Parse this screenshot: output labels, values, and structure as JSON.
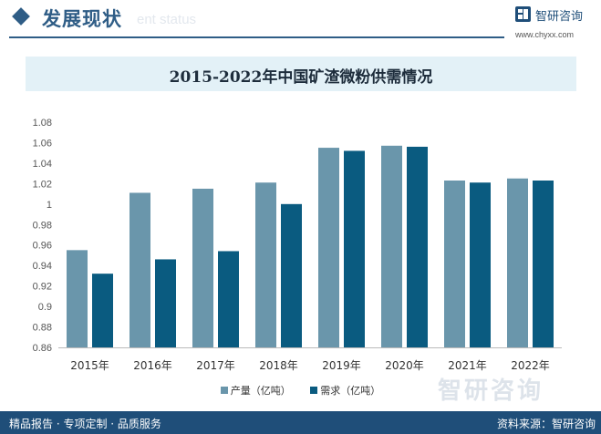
{
  "header": {
    "title": "发展现状",
    "subtitle": "ent status",
    "brand_name": "智研咨询",
    "brand_url": "www.chyxx.com"
  },
  "footer": {
    "left": "精品报告 · 专项定制 · 品质服务",
    "right": "资料来源：智研咨询",
    "watermark": "智研咨询"
  },
  "colors": {
    "production": "#6a96ab",
    "demand": "#0a5b80",
    "brand": "#2f5d86",
    "footer": "#1f4e79"
  },
  "icons": [
    "diamond-icon",
    "brand-logo-icon"
  ],
  "chart_data": {
    "type": "bar",
    "title": "2015-2022年中国矿渣微粉供需情况",
    "categories": [
      "2015年",
      "2016年",
      "2017年",
      "2018年",
      "2019年",
      "2020年",
      "2021年",
      "2022年"
    ],
    "series": [
      {
        "name": "产量（亿吨）",
        "values": [
          0.955,
          1.011,
          1.015,
          1.021,
          1.055,
          1.057,
          1.023,
          1.025
        ]
      },
      {
        "name": "需求（亿吨）",
        "values": [
          0.932,
          0.946,
          0.954,
          1.0,
          1.052,
          1.056,
          1.021,
          1.023
        ]
      }
    ],
    "ylim": [
      0.86,
      1.08
    ],
    "yticks": [
      0.86,
      0.88,
      0.9,
      0.92,
      0.94,
      0.96,
      0.98,
      1,
      1.02,
      1.04,
      1.06,
      1.08
    ],
    "xlabel": "",
    "ylabel": "",
    "grid": false,
    "legend": "bottom-center"
  }
}
